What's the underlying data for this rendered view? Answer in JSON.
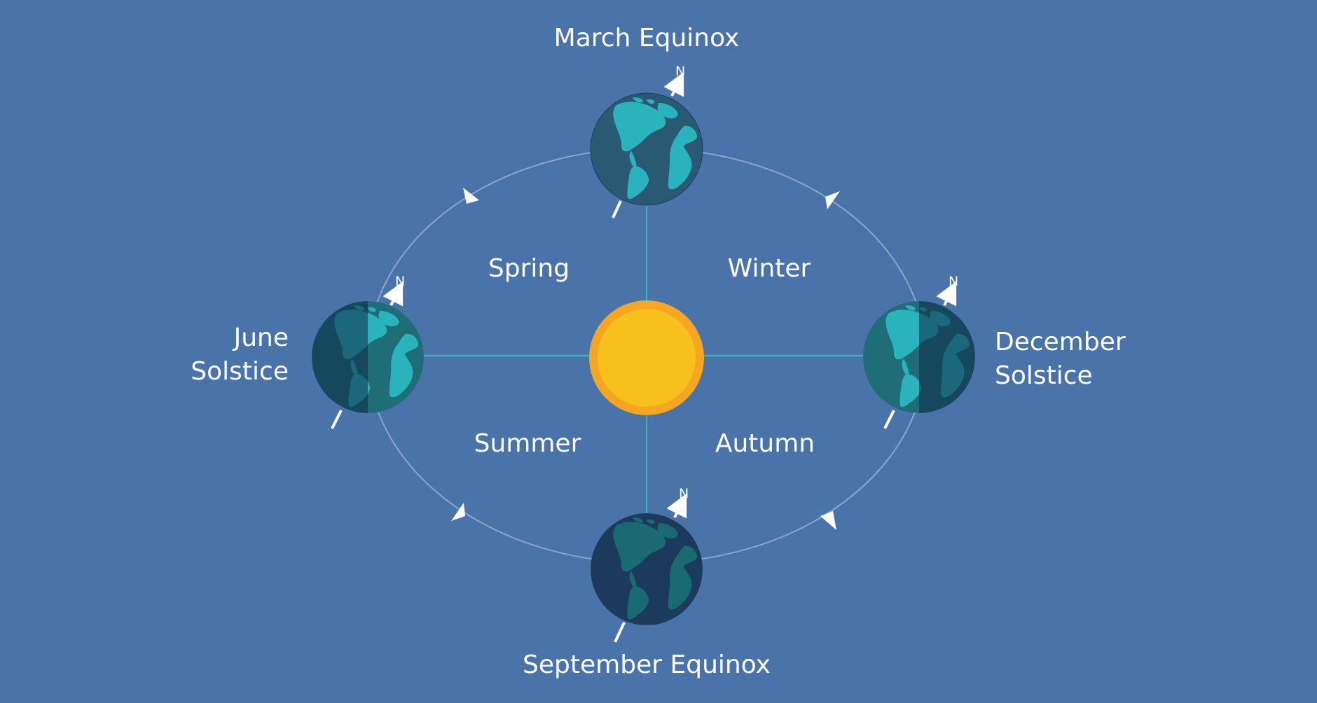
{
  "labels": {
    "march_equinox": "March Equinox",
    "september_equinox": "September Equinox",
    "june_solstice_line1": "June",
    "june_solstice_line2": "Solstice",
    "december_solstice_line1": "December",
    "december_solstice_line2": "Solstice",
    "spring": "Spring",
    "winter": "Winter",
    "summer": "Summer",
    "autumn": "Autumn",
    "north": "N"
  },
  "colors": {
    "background": "#4a73a9",
    "orbit": "#8aa8cc",
    "axis_line": "#3fb3bf",
    "sun_outer": "#f5a623",
    "sun_inner": "#f8c01c",
    "ocean_lit": "#1f6e77",
    "land_lit": "#2bb3bd",
    "ocean_dark": "#1c3b5c",
    "land_dark": "#1a6a73"
  },
  "icons": {
    "sun": "sun-icon",
    "earth": "earth-globe-icon",
    "north_arrow": "north-arrow-icon",
    "orbit_arrow": "orbit-direction-arrow-icon"
  }
}
